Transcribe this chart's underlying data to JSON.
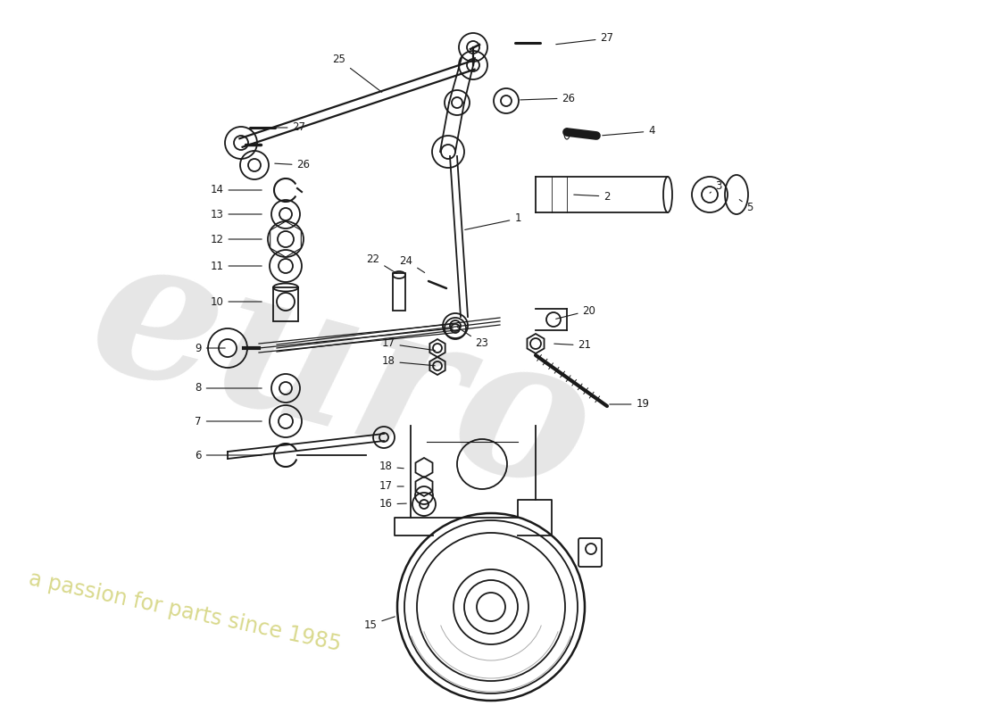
{
  "bg_color": "#ffffff",
  "line_color": "#1a1a1a",
  "text_color": "#1a1a1a",
  "figsize": [
    11.0,
    8.0
  ],
  "dpi": 100,
  "xlim": [
    0,
    1100
  ],
  "ylim": [
    0,
    800
  ]
}
